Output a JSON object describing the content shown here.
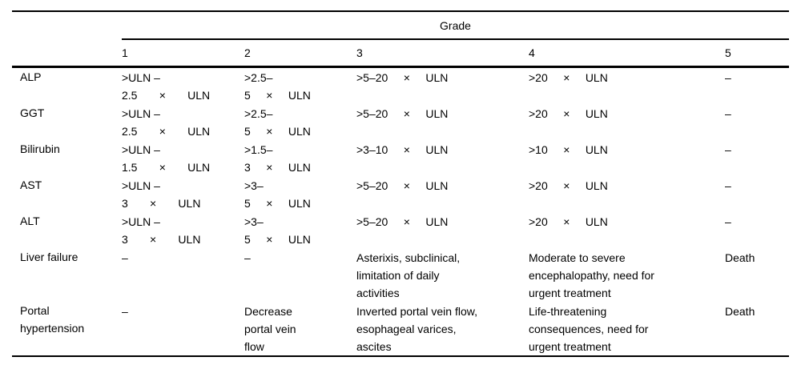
{
  "colors": {
    "background": "#ffffff",
    "text": "#000000",
    "rule": "#000000"
  },
  "table": {
    "grade_header": "Grade",
    "columns": [
      "1",
      "2",
      "3",
      "4",
      "5"
    ],
    "rows": [
      {
        "label": [
          "ALP"
        ],
        "cells": [
          [
            ">ULN –",
            "2.5       ×       ULN"
          ],
          [
            ">2.5–",
            "5     ×     ULN"
          ],
          [
            ">5–20     ×     ULN"
          ],
          [
            ">20     ×     ULN"
          ],
          [
            "–"
          ]
        ]
      },
      {
        "label": [
          "GGT"
        ],
        "cells": [
          [
            ">ULN –",
            "2.5       ×       ULN"
          ],
          [
            ">2.5–",
            "5     ×     ULN"
          ],
          [
            ">5–20     ×     ULN"
          ],
          [
            ">20     ×     ULN"
          ],
          [
            "–"
          ]
        ]
      },
      {
        "label": [
          "Bilirubin"
        ],
        "cells": [
          [
            ">ULN –",
            "1.5       ×       ULN"
          ],
          [
            ">1.5–",
            "3     ×     ULN"
          ],
          [
            ">3–10     ×     ULN"
          ],
          [
            ">10     ×     ULN"
          ],
          [
            "–"
          ]
        ]
      },
      {
        "label": [
          "AST"
        ],
        "cells": [
          [
            ">ULN –",
            "3       ×       ULN"
          ],
          [
            ">3–",
            "5     ×     ULN"
          ],
          [
            ">5–20     ×     ULN"
          ],
          [
            ">20     ×     ULN"
          ],
          [
            "–"
          ]
        ]
      },
      {
        "label": [
          "ALT"
        ],
        "cells": [
          [
            ">ULN –",
            "3       ×       ULN"
          ],
          [
            ">3–",
            "5     ×     ULN"
          ],
          [
            ">5–20     ×     ULN"
          ],
          [
            ">20     ×     ULN"
          ],
          [
            "–"
          ]
        ]
      },
      {
        "label": [
          "Liver failure"
        ],
        "cells": [
          [
            "–"
          ],
          [
            "–"
          ],
          [
            "Asterixis, subclinical,",
            "limitation of daily",
            "activities"
          ],
          [
            "Moderate to severe",
            "encephalopathy, need for",
            "urgent treatment"
          ],
          [
            "Death"
          ]
        ]
      },
      {
        "label": [
          "Portal",
          "hypertension"
        ],
        "cells": [
          [
            "–"
          ],
          [
            "Decrease",
            "portal vein",
            "flow"
          ],
          [
            "Inverted portal vein flow,",
            "esophageal varices,",
            "ascites"
          ],
          [
            "Life-threatening",
            "consequences, need for",
            "urgent treatment"
          ],
          [
            "Death"
          ]
        ]
      }
    ]
  }
}
